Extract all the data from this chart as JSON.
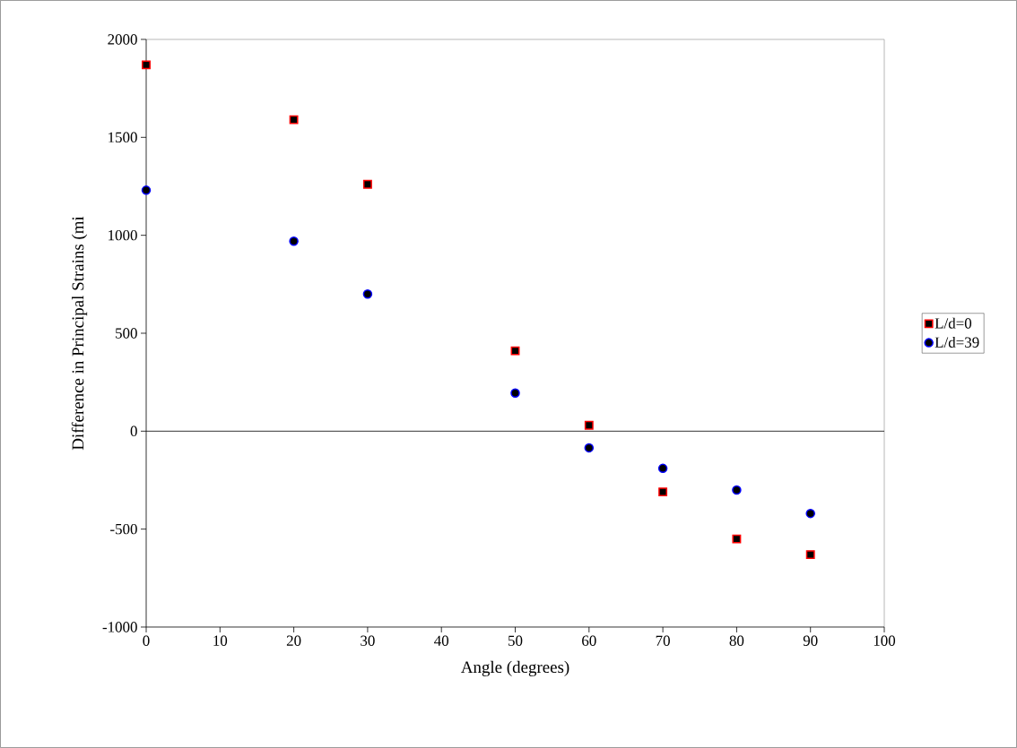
{
  "chart_data": {
    "type": "scatter",
    "xlabel": "Angle (degrees)",
    "ylabel": "Difference in Principal Strains (mi",
    "x": [
      0,
      20,
      30,
      50,
      60,
      70,
      80,
      90
    ],
    "series": [
      {
        "name": "L/d=0",
        "color": "#ff0000",
        "marker": "square",
        "values": [
          1870,
          1590,
          1260,
          410,
          30,
          -310,
          -550,
          -630
        ]
      },
      {
        "name": "L/d=39",
        "color": "#0000ff",
        "marker": "circle",
        "values": [
          1230,
          970,
          700,
          195,
          -85,
          -190,
          -300,
          -420
        ]
      }
    ],
    "xlim": [
      0,
      100
    ],
    "xticks": [
      0,
      10,
      20,
      30,
      40,
      50,
      60,
      70,
      80,
      90,
      100
    ],
    "ylim": [
      -1000,
      2000
    ],
    "yticks": [
      -1000,
      -500,
      0,
      500,
      1000,
      1500,
      2000
    ],
    "ref_lines": [
      {
        "axis": "y",
        "value": 0,
        "color": "#000000"
      }
    ],
    "grid": false,
    "legend": "right"
  }
}
